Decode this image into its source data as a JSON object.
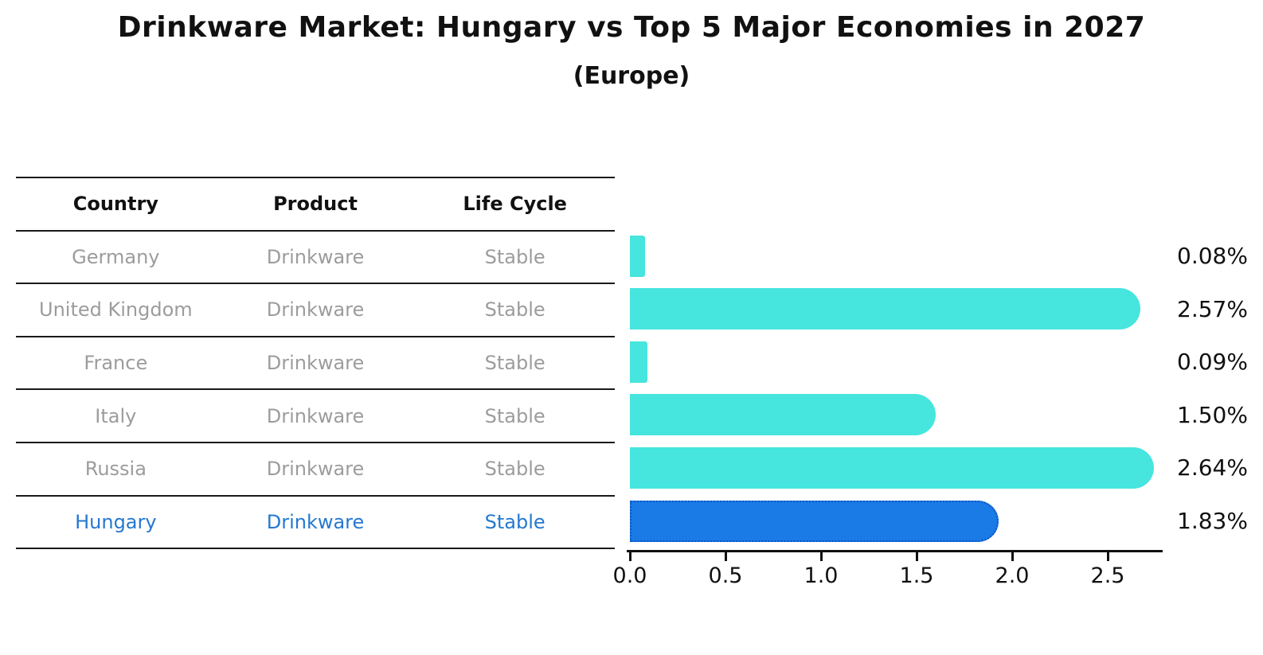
{
  "page": {
    "title": "Drinkware Market: Hungary vs Top 5 Major Economies in 2027",
    "subtitle": "(Europe)"
  },
  "table": {
    "headers": [
      "Country",
      "Product",
      "Life Cycle"
    ],
    "rows": [
      {
        "country": "Germany",
        "product": "Drinkware",
        "life_cycle": "Stable",
        "highlight": false
      },
      {
        "country": "United Kingdom",
        "product": "Drinkware",
        "life_cycle": "Stable",
        "highlight": false
      },
      {
        "country": "France",
        "product": "Drinkware",
        "life_cycle": "Stable",
        "highlight": false
      },
      {
        "country": "Italy",
        "product": "Drinkware",
        "life_cycle": "Stable",
        "highlight": false
      },
      {
        "country": "Russia",
        "product": "Drinkware",
        "life_cycle": "Stable",
        "highlight": false
      },
      {
        "country": "Hungary",
        "product": "Drinkware",
        "life_cycle": "Stable",
        "highlight": true
      }
    ]
  },
  "chart_data": {
    "type": "bar",
    "orientation": "horizontal",
    "title": "Drinkware Market: Hungary vs Top 5 Major Economies in 2027",
    "subtitle": "(Europe)",
    "categories": [
      "Germany",
      "United Kingdom",
      "France",
      "Italy",
      "Russia",
      "Hungary"
    ],
    "values": [
      0.08,
      2.57,
      0.09,
      1.5,
      2.64,
      1.83
    ],
    "value_labels": [
      "0.08%",
      "2.57%",
      "0.09%",
      "1.50%",
      "2.64%",
      "1.83%"
    ],
    "xlabel": "",
    "ylabel": "",
    "xlim": [
      0,
      2.8
    ],
    "xticks": [
      0.0,
      0.5,
      1.0,
      1.5,
      2.0,
      2.5
    ],
    "xtick_labels": [
      "0.0",
      "0.5",
      "1.0",
      "1.5",
      "2.0",
      "2.5"
    ],
    "grid": false,
    "legend_position": "none",
    "highlight_index": 5,
    "bar_color": "#46e5de",
    "highlight_bar_color": "#1a7ae6",
    "highlight_bar_border_color": "#0b55c4",
    "highlight_text_color": "#2578d0",
    "axis_color": "#111111",
    "row_text_color": "#9c9c9c"
  }
}
